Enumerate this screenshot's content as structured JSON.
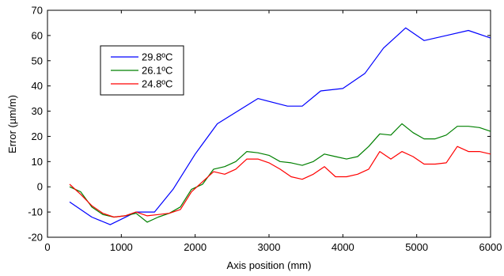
{
  "chart_data": {
    "type": "line",
    "title": "",
    "xlabel": "Axis position (mm)",
    "ylabel": "Error (µm/m)",
    "xlim": [
      0,
      6000
    ],
    "ylim": [
      -20,
      70
    ],
    "xticks": [
      0,
      1000,
      2000,
      3000,
      4000,
      5000,
      6000
    ],
    "yticks": [
      -20,
      -10,
      0,
      10,
      20,
      30,
      40,
      50,
      60,
      70
    ],
    "grid": false,
    "legend_position": "top-left",
    "series": [
      {
        "name": "29.8ºC",
        "color": "#0000ff",
        "x": [
          300,
          600,
          850,
          1200,
          1450,
          1700,
          2000,
          2300,
          2850,
          3250,
          3450,
          3700,
          4000,
          4300,
          4550,
          4850,
          5100,
          5400,
          5700,
          6000
        ],
        "y": [
          -6,
          -12,
          -15,
          -10,
          -10,
          -1,
          13,
          25,
          35,
          32,
          32,
          38,
          39,
          45,
          55,
          63,
          58,
          60,
          62,
          59
        ]
      },
      {
        "name": "26.1ºC",
        "color": "#008000",
        "x": [
          300,
          450,
          600,
          750,
          900,
          1050,
          1200,
          1350,
          1500,
          1650,
          1800,
          1950,
          2100,
          2250,
          2400,
          2550,
          2700,
          2850,
          3000,
          3150,
          3300,
          3450,
          3600,
          3750,
          3900,
          4050,
          4200,
          4350,
          4500,
          4650,
          4800,
          4950,
          5100,
          5250,
          5400,
          5550,
          5700,
          5850,
          6000
        ],
        "y": [
          0,
          -2,
          -8,
          -11,
          -12,
          -11.5,
          -10.5,
          -14,
          -12,
          -10.5,
          -8,
          -1,
          1,
          7,
          8,
          10,
          14,
          13.5,
          12.5,
          10,
          9.5,
          8.5,
          10,
          13,
          12,
          11,
          12,
          16,
          21,
          20.5,
          25,
          21.5,
          19,
          19,
          20.5,
          24,
          24,
          23.5,
          22
        ]
      },
      {
        "name": "24.8ºC",
        "color": "#ff0000",
        "x": [
          300,
          450,
          600,
          750,
          900,
          1050,
          1200,
          1350,
          1500,
          1650,
          1800,
          1950,
          2100,
          2250,
          2400,
          2550,
          2700,
          2850,
          3000,
          3150,
          3300,
          3450,
          3600,
          3750,
          3900,
          4050,
          4200,
          4350,
          4500,
          4650,
          4800,
          4950,
          5100,
          5250,
          5400,
          5550,
          5700,
          5850,
          6000
        ],
        "y": [
          1,
          -3,
          -7.5,
          -10.5,
          -12,
          -11.5,
          -10,
          -11.5,
          -11,
          -10.5,
          -9,
          -2,
          2,
          6,
          5,
          7,
          11,
          11,
          9.5,
          7,
          4,
          3,
          5,
          8,
          4,
          4,
          5,
          7,
          14,
          11,
          14,
          12,
          9,
          9,
          9.5,
          16,
          14,
          14,
          13
        ]
      }
    ]
  }
}
